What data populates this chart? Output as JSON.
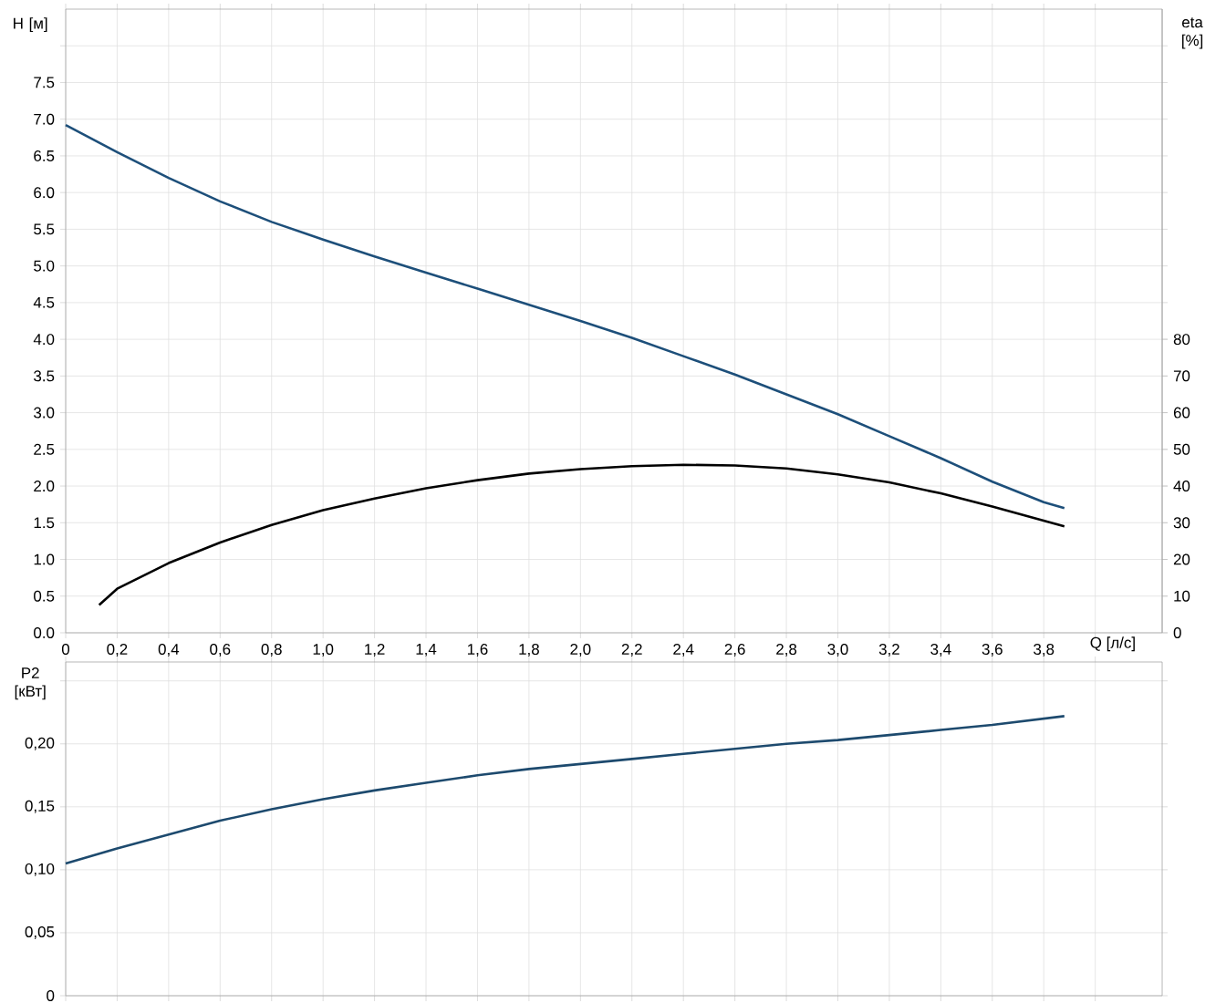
{
  "chart_data": [
    {
      "type": "line",
      "xlabel": "Q [л/с]",
      "ylabel": "H [м]",
      "y2label": "eta [%]",
      "grid": true,
      "xlim": [
        0,
        4.26
      ],
      "xticks": [
        {
          "value": 0,
          "label": "0"
        },
        {
          "value": 0.2,
          "label": "0,2"
        },
        {
          "value": 0.4,
          "label": "0,4"
        },
        {
          "value": 0.6,
          "label": "0,6"
        },
        {
          "value": 0.8,
          "label": "0,8"
        },
        {
          "value": 1.0,
          "label": "1,0"
        },
        {
          "value": 1.2,
          "label": "1,2"
        },
        {
          "value": 1.4,
          "label": "1,4"
        },
        {
          "value": 1.6,
          "label": "1,6"
        },
        {
          "value": 1.8,
          "label": "1,8"
        },
        {
          "value": 2.0,
          "label": "2,0"
        },
        {
          "value": 2.2,
          "label": "2,2"
        },
        {
          "value": 2.4,
          "label": "2,4"
        },
        {
          "value": 2.6,
          "label": "2,6"
        },
        {
          "value": 2.8,
          "label": "2,8"
        },
        {
          "value": 3.0,
          "label": "3,0"
        },
        {
          "value": 3.2,
          "label": "3,2"
        },
        {
          "value": 3.4,
          "label": "3,4"
        },
        {
          "value": 3.6,
          "label": "3,6"
        },
        {
          "value": 3.8,
          "label": "3,8"
        },
        {
          "value": 4.0,
          "label": null
        }
      ],
      "ylim": [
        0,
        8.5
      ],
      "yticks": [
        {
          "value": 0,
          "label": "0.0"
        },
        {
          "value": 0.5,
          "label": "0.5"
        },
        {
          "value": 1.0,
          "label": "1.0"
        },
        {
          "value": 1.5,
          "label": "1.5"
        },
        {
          "value": 2.0,
          "label": "2.0"
        },
        {
          "value": 2.5,
          "label": "2.5"
        },
        {
          "value": 3.0,
          "label": "3.0"
        },
        {
          "value": 3.5,
          "label": "3.5"
        },
        {
          "value": 4.0,
          "label": "4.0"
        },
        {
          "value": 4.5,
          "label": "4.5"
        },
        {
          "value": 5.0,
          "label": "5.0"
        },
        {
          "value": 5.5,
          "label": "5.5"
        },
        {
          "value": 6.0,
          "label": "6.0"
        },
        {
          "value": 6.5,
          "label": "6.5"
        },
        {
          "value": 7.0,
          "label": "7.0"
        },
        {
          "value": 7.5,
          "label": "7.5"
        },
        {
          "value": 8.0,
          "label": null
        }
      ],
      "y2lim": [
        0,
        170
      ],
      "y2ticks": [
        0,
        10,
        20,
        30,
        40,
        50,
        60,
        70,
        80
      ],
      "series": [
        {
          "color": "#1d4f7a",
          "x": [
            0,
            0.2,
            0.4,
            0.6,
            0.8,
            1.0,
            1.2,
            1.4,
            1.6,
            1.8,
            2.0,
            2.2,
            2.4,
            2.6,
            2.8,
            3.0,
            3.2,
            3.4,
            3.6,
            3.8,
            3.88
          ],
          "values": [
            6.92,
            6.55,
            6.2,
            5.88,
            5.6,
            5.36,
            5.13,
            4.91,
            4.69,
            4.47,
            4.25,
            4.02,
            3.77,
            3.52,
            3.25,
            2.98,
            2.68,
            2.38,
            2.06,
            1.78,
            1.7
          ]
        },
        {
          "color": "#000000",
          "axis": "y2",
          "x": [
            0.13,
            0.2,
            0.4,
            0.6,
            0.8,
            1.0,
            1.2,
            1.4,
            1.6,
            1.8,
            2.0,
            2.2,
            2.4,
            2.6,
            2.8,
            3.0,
            3.2,
            3.4,
            3.6,
            3.88
          ],
          "values": [
            7.6,
            12,
            19,
            24.6,
            29.4,
            33.4,
            36.6,
            39.4,
            41.6,
            43.4,
            44.6,
            45.4,
            45.8,
            45.6,
            44.8,
            43.2,
            41,
            38,
            34.4,
            29
          ]
        }
      ]
    },
    {
      "type": "line",
      "ylabel": "P2 [кВт]",
      "grid": true,
      "tick_labels": "y",
      "xlim": [
        0,
        4.26
      ],
      "xticks": [
        {
          "value": 0,
          "label": null
        },
        {
          "value": 0.2,
          "label": null
        },
        {
          "value": 0.4,
          "label": null
        },
        {
          "value": 0.6,
          "label": null
        },
        {
          "value": 0.8,
          "label": null
        },
        {
          "value": 1.0,
          "label": null
        },
        {
          "value": 1.2,
          "label": null
        },
        {
          "value": 1.4,
          "label": null
        },
        {
          "value": 1.6,
          "label": null
        },
        {
          "value": 1.8,
          "label": null
        },
        {
          "value": 2.0,
          "label": null
        },
        {
          "value": 2.2,
          "label": null
        },
        {
          "value": 2.4,
          "label": null
        },
        {
          "value": 2.6,
          "label": null
        },
        {
          "value": 2.8,
          "label": null
        },
        {
          "value": 3.0,
          "label": null
        },
        {
          "value": 3.2,
          "label": null
        },
        {
          "value": 3.4,
          "label": null
        },
        {
          "value": 3.6,
          "label": null
        },
        {
          "value": 3.8,
          "label": null
        },
        {
          "value": 4.0,
          "label": null
        }
      ],
      "ylim": [
        0,
        0.265
      ],
      "yticks": [
        {
          "value": 0,
          "label": "0"
        },
        {
          "value": 0.05,
          "label": "0,05"
        },
        {
          "value": 0.1,
          "label": "0,10"
        },
        {
          "value": 0.15,
          "label": "0,15"
        },
        {
          "value": 0.2,
          "label": "0,20"
        },
        {
          "value": 0.25,
          "label": null
        }
      ],
      "series": [
        {
          "color": "#1d4a6e",
          "x": [
            0,
            0.2,
            0.4,
            0.6,
            0.8,
            1.0,
            1.2,
            1.4,
            1.6,
            1.8,
            2.0,
            2.2,
            2.4,
            2.6,
            2.8,
            3.0,
            3.2,
            3.4,
            3.6,
            3.88
          ],
          "values": [
            0.105,
            0.117,
            0.128,
            0.139,
            0.148,
            0.156,
            0.163,
            0.169,
            0.175,
            0.18,
            0.184,
            0.188,
            0.192,
            0.196,
            0.2,
            0.203,
            0.207,
            0.211,
            0.215,
            0.222
          ]
        }
      ]
    }
  ]
}
